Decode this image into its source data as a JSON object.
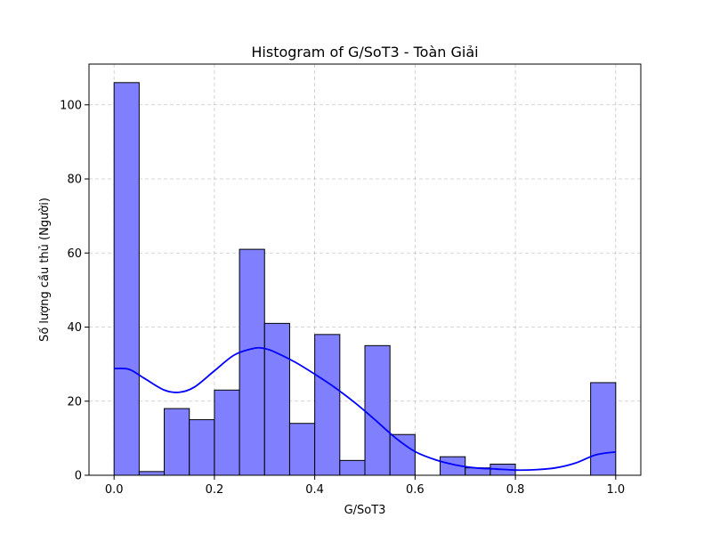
{
  "chart_data": {
    "type": "bar",
    "title": "Histogram of G/SoT3 - Toàn Giải",
    "xlabel": "G/SoT3",
    "ylabel": "Số lượng cầu thủ (Người)",
    "xlim": [
      -0.05,
      1.05
    ],
    "ylim": [
      0,
      111
    ],
    "xticks": [
      0.0,
      0.2,
      0.4,
      0.6,
      0.8,
      1.0
    ],
    "xtick_labels": [
      "0.0",
      "0.2",
      "0.4",
      "0.6",
      "0.8",
      "1.0"
    ],
    "yticks": [
      0,
      20,
      40,
      60,
      80,
      100
    ],
    "ytick_labels": [
      "0",
      "20",
      "40",
      "60",
      "80",
      "100"
    ],
    "grid": true,
    "bar_color": "#8080ff",
    "bar_edge_color": "#000000",
    "kde_color": "#0000ff",
    "bins": [
      {
        "x0": 0.0,
        "x1": 0.05,
        "count": 106
      },
      {
        "x0": 0.05,
        "x1": 0.1,
        "count": 1
      },
      {
        "x0": 0.1,
        "x1": 0.15,
        "count": 18
      },
      {
        "x0": 0.15,
        "x1": 0.2,
        "count": 15
      },
      {
        "x0": 0.2,
        "x1": 0.25,
        "count": 23
      },
      {
        "x0": 0.25,
        "x1": 0.3,
        "count": 61
      },
      {
        "x0": 0.3,
        "x1": 0.35,
        "count": 41
      },
      {
        "x0": 0.35,
        "x1": 0.4,
        "count": 14
      },
      {
        "x0": 0.4,
        "x1": 0.45,
        "count": 38
      },
      {
        "x0": 0.45,
        "x1": 0.5,
        "count": 4
      },
      {
        "x0": 0.5,
        "x1": 0.55,
        "count": 35
      },
      {
        "x0": 0.55,
        "x1": 0.6,
        "count": 11
      },
      {
        "x0": 0.6,
        "x1": 0.65,
        "count": 0
      },
      {
        "x0": 0.65,
        "x1": 0.7,
        "count": 5
      },
      {
        "x0": 0.7,
        "x1": 0.75,
        "count": 2
      },
      {
        "x0": 0.75,
        "x1": 0.8,
        "count": 3
      },
      {
        "x0": 0.8,
        "x1": 0.85,
        "count": 0
      },
      {
        "x0": 0.85,
        "x1": 0.9,
        "count": 0
      },
      {
        "x0": 0.9,
        "x1": 0.95,
        "count": 0
      },
      {
        "x0": 0.95,
        "x1": 1.0,
        "count": 25
      }
    ],
    "kde": {
      "x": [
        0.0,
        0.03,
        0.06,
        0.1,
        0.13,
        0.16,
        0.2,
        0.24,
        0.28,
        0.3,
        0.32,
        0.36,
        0.4,
        0.44,
        0.48,
        0.52,
        0.56,
        0.6,
        0.64,
        0.68,
        0.72,
        0.76,
        0.8,
        0.84,
        0.88,
        0.92,
        0.96,
        1.0
      ],
      "y": [
        28.8,
        28.6,
        26.2,
        23.0,
        22.4,
        23.8,
        28.2,
        32.5,
        34.3,
        34.2,
        33.3,
        30.6,
        27.3,
        23.7,
        19.6,
        15.0,
        10.2,
        6.4,
        4.2,
        2.8,
        2.0,
        1.7,
        1.4,
        1.5,
        2.0,
        3.3,
        5.5,
        6.3
      ]
    }
  }
}
